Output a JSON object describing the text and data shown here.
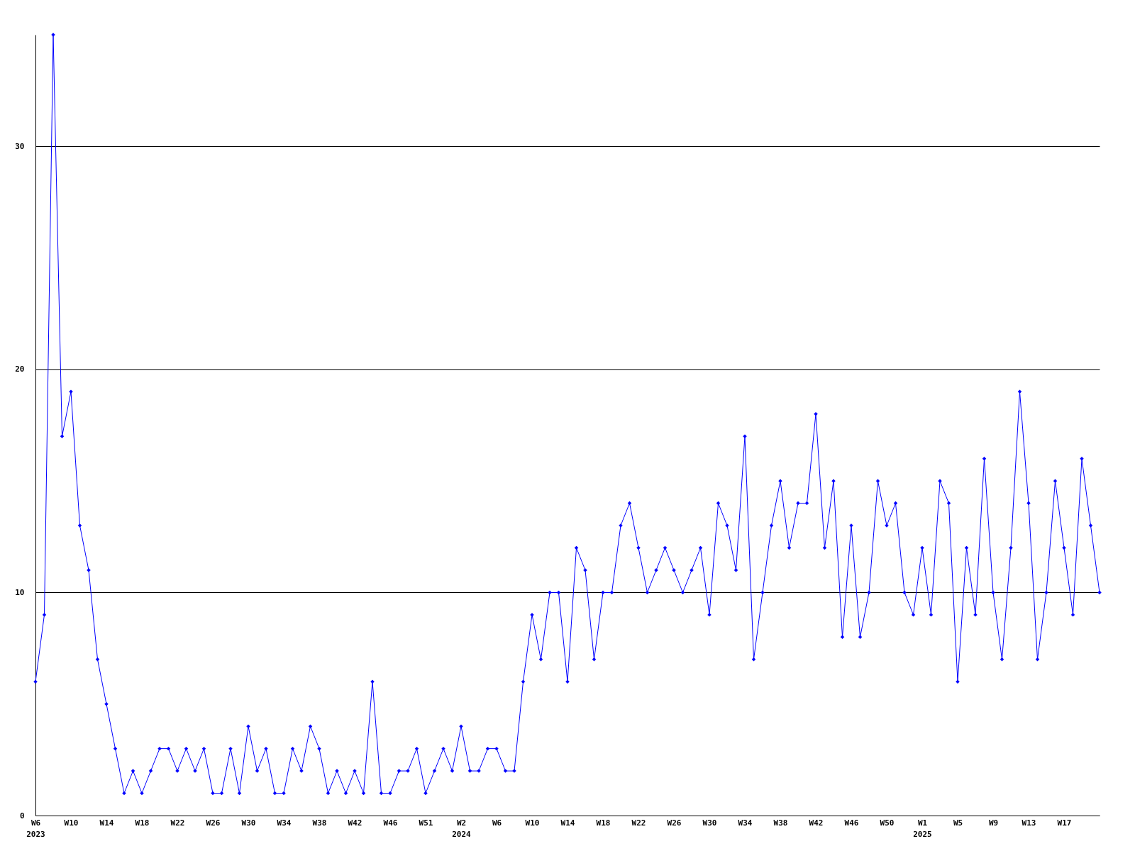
{
  "chart_data": {
    "type": "line",
    "categories": [
      "W6\n2023",
      null,
      null,
      null,
      "W10",
      null,
      null,
      null,
      "W14",
      null,
      null,
      null,
      "W18",
      null,
      null,
      null,
      "W22",
      null,
      null,
      null,
      "W26",
      null,
      null,
      null,
      "W30",
      null,
      null,
      null,
      "W34",
      null,
      null,
      null,
      "W38",
      null,
      null,
      null,
      "W42",
      null,
      null,
      null,
      "W46",
      null,
      null,
      null,
      "W51",
      null,
      null,
      null,
      "W2\n2024",
      null,
      null,
      null,
      "W6",
      null,
      null,
      null,
      "W10",
      null,
      null,
      null,
      "W14",
      null,
      null,
      null,
      "W18",
      null,
      null,
      null,
      "W22",
      null,
      null,
      null,
      "W26",
      null,
      null,
      null,
      "W30",
      null,
      null,
      null,
      "W34",
      null,
      null,
      null,
      "W38",
      null,
      null,
      null,
      "W42",
      null,
      null,
      null,
      "W46",
      null,
      null,
      null,
      "W50",
      null,
      null,
      null,
      "W1\n2025",
      null,
      null,
      null,
      "W5",
      null,
      null,
      null,
      "W9",
      null,
      null,
      null,
      "W13",
      null,
      null,
      null,
      "W17",
      null,
      null,
      null,
      null
    ],
    "series": [
      {
        "color": "#0000ff",
        "values": [
          6,
          9,
          35,
          17,
          19,
          13,
          11,
          7,
          5,
          3,
          1,
          2,
          1,
          2,
          3,
          3,
          2,
          3,
          2,
          3,
          1,
          1,
          3,
          1,
          4,
          2,
          3,
          1,
          1,
          3,
          2,
          4,
          3,
          1,
          2,
          1,
          2,
          1,
          6,
          1,
          1,
          2,
          2,
          3,
          1,
          2,
          3,
          2,
          4,
          2,
          2,
          3,
          3,
          2,
          2,
          6,
          9,
          7,
          10,
          10,
          6,
          12,
          11,
          7,
          10,
          10,
          13,
          14,
          12,
          10,
          11,
          12,
          11,
          10,
          11,
          12,
          9,
          14,
          13,
          11,
          17,
          7,
          10,
          13,
          15,
          12,
          14,
          14,
          18,
          12,
          15,
          8,
          13,
          8,
          10,
          15,
          13,
          14,
          10,
          9,
          12,
          9,
          15,
          14,
          6,
          12,
          9,
          16,
          10,
          7,
          12,
          19,
          14,
          7,
          10,
          15,
          12,
          9,
          16,
          13,
          10
        ]
      }
    ],
    "ylim": [
      0,
      35
    ],
    "yticks": [
      0,
      10,
      20,
      30
    ],
    "grid": "y",
    "marker": "diamond",
    "line_style": "solid"
  }
}
